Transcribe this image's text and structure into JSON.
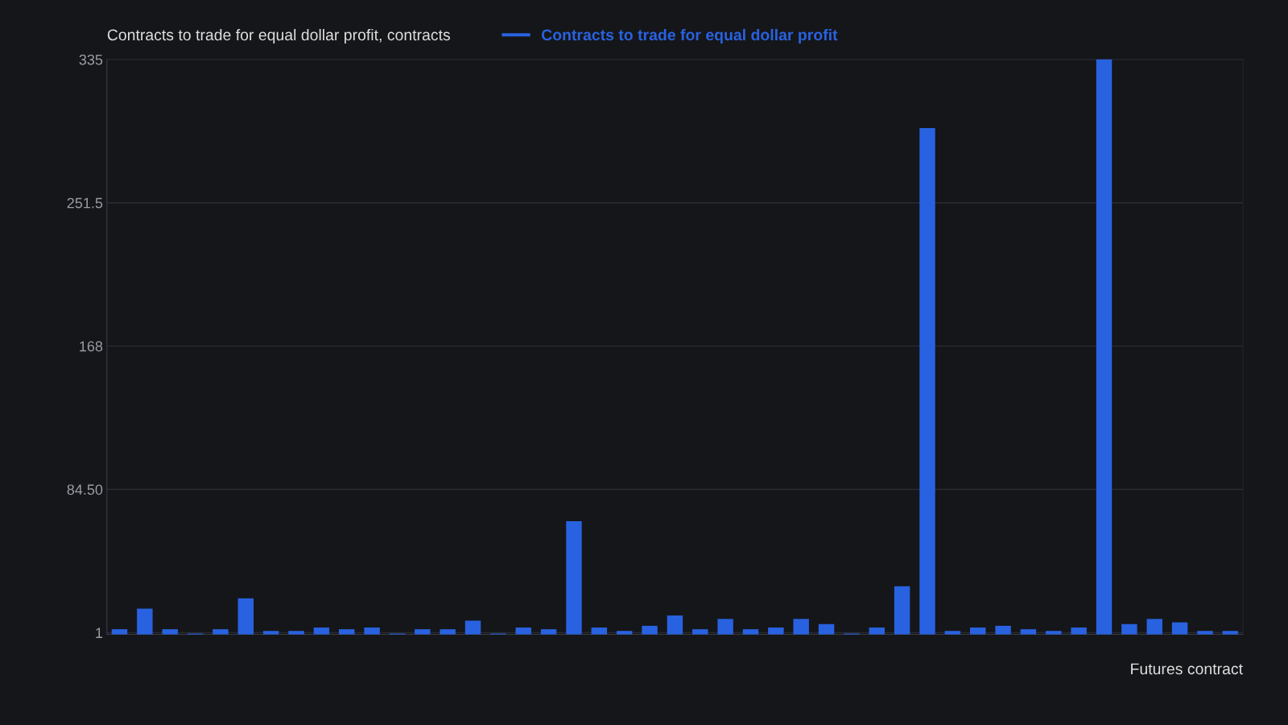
{
  "chart_data": {
    "type": "bar",
    "ylabel": "Contracts to trade for equal dollar profit, contracts",
    "xlabel": "Futures contract",
    "categories": [
      null,
      null,
      null,
      null,
      null,
      null,
      null,
      null,
      null,
      null,
      null,
      null,
      null,
      null,
      null,
      null,
      null,
      null,
      null,
      null,
      null,
      null,
      null,
      null,
      null,
      null,
      null,
      null,
      null,
      null,
      null,
      null,
      null,
      null,
      null,
      null,
      null,
      null,
      null,
      null,
      null,
      null,
      null,
      null,
      null
    ],
    "series": [
      {
        "name": "Contracts to trade for equal dollar profit",
        "color": "#2962e0",
        "values": [
          3,
          15,
          3,
          0.5,
          3,
          21,
          2,
          2,
          4,
          3,
          4,
          0.5,
          3,
          3,
          8,
          0.5,
          4,
          3,
          66,
          4,
          2,
          5,
          11,
          3,
          9,
          3,
          4,
          9,
          6,
          0.5,
          4,
          28,
          295,
          2,
          4,
          5,
          3,
          2,
          4,
          335,
          6,
          9,
          7,
          2,
          2
        ]
      }
    ],
    "ylim": [
      0,
      335
    ],
    "yticks": [
      1,
      {
        "value": 84.5,
        "label": "84.50"
      },
      168,
      251.5,
      335
    ],
    "grid": "y",
    "legend": "top left"
  }
}
